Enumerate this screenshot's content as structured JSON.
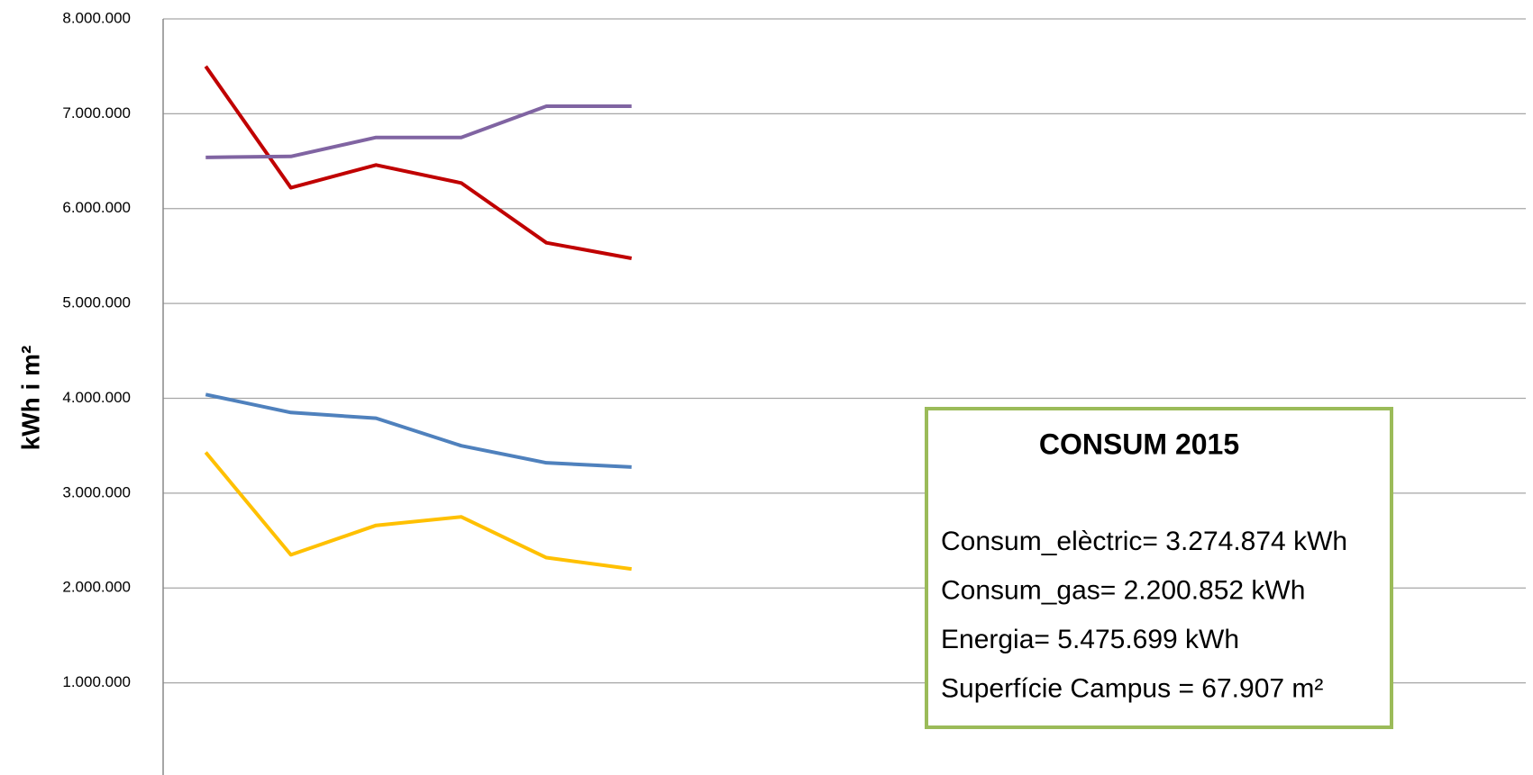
{
  "chart_data": {
    "type": "line",
    "y_label": "kWh i m²",
    "categories": [
      null,
      null,
      null,
      null,
      null,
      null,
      null,
      null,
      null,
      null,
      null,
      null,
      null,
      null,
      null,
      null
    ],
    "series": [
      {
        "color": "#c00000",
        "values": [
          7500000,
          6220000,
          6460000,
          6270000,
          5640000,
          5475699,
          null,
          null,
          null,
          null,
          null,
          null,
          null,
          null,
          null,
          null
        ]
      },
      {
        "color": "#8064a2",
        "values": [
          6540000,
          6550000,
          6750000,
          6750000,
          7080000,
          7080000,
          null,
          null,
          null,
          null,
          null,
          null,
          null,
          null,
          null,
          null
        ]
      },
      {
        "color": "#4f81bd",
        "values": [
          4040000,
          3850000,
          3790000,
          3500000,
          3320000,
          3274874,
          null,
          null,
          null,
          null,
          null,
          null,
          null,
          null,
          null,
          null
        ]
      },
      {
        "color": "#ffc000",
        "values": [
          3430000,
          2350000,
          2660000,
          2750000,
          2320000,
          2200852,
          null,
          null,
          null,
          null,
          null,
          null,
          null,
          null,
          null,
          null
        ]
      }
    ],
    "ylim": [
      0,
      8000000
    ],
    "yticks": [
      {
        "value": 1000000,
        "label": "1.000.000"
      },
      {
        "value": 2000000,
        "label": "2.000.000"
      },
      {
        "value": 3000000,
        "label": "3.000.000"
      },
      {
        "value": 4000000,
        "label": "4.000.000"
      },
      {
        "value": 5000000,
        "label": "5.000.000"
      },
      {
        "value": 6000000,
        "label": "6.000.000"
      },
      {
        "value": 7000000,
        "label": "7.000.000"
      },
      {
        "value": 8000000,
        "label": "8.000.000"
      }
    ],
    "grid": true,
    "annotation": {
      "title": "CONSUM 2015",
      "lines": [
        "Consum_elèctric= 3.274.874 kWh",
        "Consum_gas= 2.200.852 kWh",
        "Energia= 5.475.699 kWh",
        "Superfície Campus  = 67.907  m²"
      ]
    }
  }
}
